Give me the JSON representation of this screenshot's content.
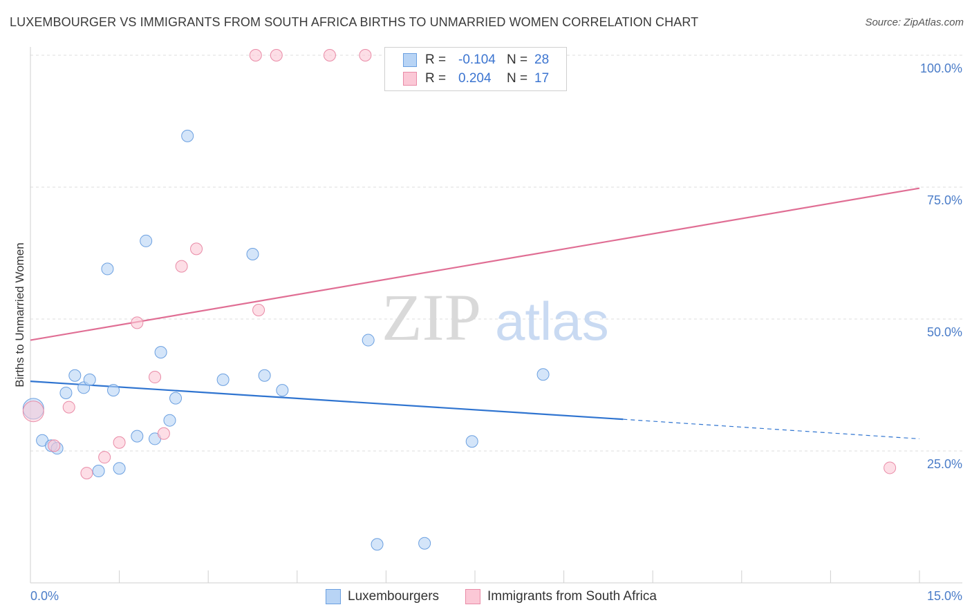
{
  "title": "LUXEMBOURGER VS IMMIGRANTS FROM SOUTH AFRICA BIRTHS TO UNMARRIED WOMEN CORRELATION CHART",
  "source": "Source: ZipAtlas.com",
  "watermark": {
    "zip": "ZIP",
    "atlas": "atlas"
  },
  "legend": {
    "rows": [
      {
        "r_label": "R =",
        "r_value": "-0.104",
        "n_label": "N =",
        "n_value": "28",
        "color": "#b8d4f5",
        "border": "#6a9fe0"
      },
      {
        "r_label": "R =",
        "r_value": "0.204",
        "n_label": "N =",
        "n_value": "17",
        "color": "#fbc8d6",
        "border": "#e98aa6"
      }
    ]
  },
  "bottom_legend": {
    "items": [
      {
        "label": "Luxembourgers",
        "color": "#b8d4f5",
        "border": "#6a9fe0"
      },
      {
        "label": "Immigrants from South Africa",
        "color": "#fbc8d6",
        "border": "#e98aa6"
      }
    ]
  },
  "chart_data": {
    "type": "scatter",
    "title": "LUXEMBOURGER VS IMMIGRANTS FROM SOUTH AFRICA BIRTHS TO UNMARRIED WOMEN CORRELATION CHART",
    "xlabel": "",
    "ylabel": "Births to Unmarried Women",
    "xlim": [
      0,
      15
    ],
    "ylim": [
      0,
      100
    ],
    "x_tick_labels": [
      "0.0%",
      "15.0%"
    ],
    "y_ticks": [
      25,
      50,
      75,
      100
    ],
    "y_tick_labels": [
      "25.0%",
      "50.0%",
      "75.0%",
      "100.0%"
    ],
    "grid": true,
    "legend_position": "top-center",
    "series": [
      {
        "name": "Luxembourgers",
        "color": "#6a9fe0",
        "fill": "#b8d4f5",
        "points": [
          {
            "x": 0.05,
            "y": 33.0,
            "big": true
          },
          {
            "x": 0.2,
            "y": 27.0
          },
          {
            "x": 0.35,
            "y": 26.0
          },
          {
            "x": 0.45,
            "y": 25.5
          },
          {
            "x": 0.6,
            "y": 36.0
          },
          {
            "x": 0.75,
            "y": 39.3
          },
          {
            "x": 0.9,
            "y": 37.0
          },
          {
            "x": 1.0,
            "y": 38.5
          },
          {
            "x": 1.15,
            "y": 21.2
          },
          {
            "x": 1.3,
            "y": 59.5
          },
          {
            "x": 1.4,
            "y": 36.5
          },
          {
            "x": 1.5,
            "y": 21.7
          },
          {
            "x": 1.8,
            "y": 27.8
          },
          {
            "x": 1.95,
            "y": 64.8
          },
          {
            "x": 2.1,
            "y": 27.3
          },
          {
            "x": 2.2,
            "y": 43.7
          },
          {
            "x": 2.35,
            "y": 30.8
          },
          {
            "x": 2.45,
            "y": 35.0
          },
          {
            "x": 2.65,
            "y": 84.7
          },
          {
            "x": 3.25,
            "y": 38.5
          },
          {
            "x": 3.75,
            "y": 62.3
          },
          {
            "x": 3.95,
            "y": 39.3
          },
          {
            "x": 4.25,
            "y": 36.5
          },
          {
            "x": 5.7,
            "y": 46.0
          },
          {
            "x": 5.85,
            "y": 7.3
          },
          {
            "x": 6.65,
            "y": 7.5
          },
          {
            "x": 7.45,
            "y": 26.8
          },
          {
            "x": 8.65,
            "y": 39.5
          }
        ],
        "trend": {
          "x": [
            0,
            10
          ],
          "y": [
            38.2,
            31.0
          ],
          "dashed_to": [
            15,
            27.3
          ]
        }
      },
      {
        "name": "Immigrants from South Africa",
        "color": "#e98aa6",
        "fill": "#fbc8d6",
        "points": [
          {
            "x": 0.05,
            "y": 32.5,
            "big": true
          },
          {
            "x": 0.4,
            "y": 26.0
          },
          {
            "x": 0.65,
            "y": 33.3
          },
          {
            "x": 0.95,
            "y": 20.8
          },
          {
            "x": 1.25,
            "y": 23.8
          },
          {
            "x": 1.5,
            "y": 26.6
          },
          {
            "x": 1.8,
            "y": 49.3
          },
          {
            "x": 2.1,
            "y": 39.0
          },
          {
            "x": 2.25,
            "y": 28.3
          },
          {
            "x": 2.55,
            "y": 60.0
          },
          {
            "x": 2.8,
            "y": 63.3
          },
          {
            "x": 3.8,
            "y": 100.0
          },
          {
            "x": 3.85,
            "y": 51.7
          },
          {
            "x": 4.15,
            "y": 100.0
          },
          {
            "x": 5.05,
            "y": 100.0
          },
          {
            "x": 5.65,
            "y": 100.0
          },
          {
            "x": 14.5,
            "y": 21.8
          }
        ],
        "trend": {
          "x": [
            0,
            15
          ],
          "y": [
            46.0,
            74.8
          ]
        }
      }
    ]
  }
}
